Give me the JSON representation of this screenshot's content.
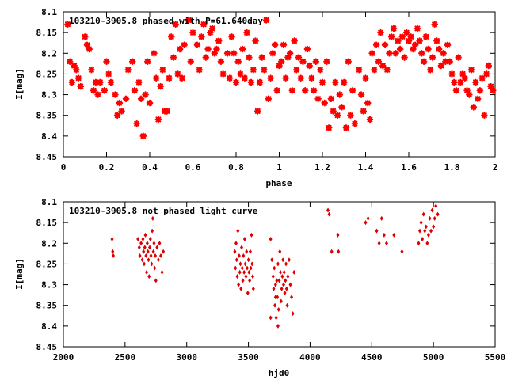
{
  "chart_data": [
    {
      "type": "scatter",
      "title": "103210-3905.8 phased with P=61.640day",
      "xlabel": "phase",
      "ylabel": "I[mag]",
      "xlim": [
        0,
        2
      ],
      "ylim": [
        8.1,
        8.45
      ],
      "y_inverted": true,
      "xticks": [
        0,
        0.2,
        0.4,
        0.6,
        0.8,
        1,
        1.2,
        1.4,
        1.6,
        1.8,
        2
      ],
      "xtick_labels": [
        "0",
        "0.2",
        "0.4",
        "0.6",
        "0.8",
        "1",
        "1.2",
        "1.4",
        "1.6",
        "1.8",
        "2"
      ],
      "yticks": [
        8.1,
        8.15,
        8.2,
        8.25,
        8.3,
        8.35,
        8.4,
        8.45
      ],
      "ytick_labels": [
        "8.1",
        "8.15",
        "8.2",
        "8.25",
        "8.3",
        "8.35",
        "8.4",
        "8.45"
      ],
      "marker_color": "#ff0000",
      "grid": false,
      "points": [
        [
          0.02,
          8.13
        ],
        [
          0.03,
          8.22
        ],
        [
          0.04,
          8.27
        ],
        [
          0.05,
          8.23
        ],
        [
          0.06,
          8.24
        ],
        [
          0.07,
          8.26
        ],
        [
          0.08,
          8.28
        ],
        [
          0.1,
          8.16
        ],
        [
          0.11,
          8.18
        ],
        [
          0.12,
          8.19
        ],
        [
          0.13,
          8.24
        ],
        [
          0.14,
          8.29
        ],
        [
          0.15,
          8.27
        ],
        [
          0.16,
          8.3
        ],
        [
          0.17,
          8.27
        ],
        [
          0.19,
          8.29
        ],
        [
          0.2,
          8.22
        ],
        [
          0.21,
          8.25
        ],
        [
          0.22,
          8.27
        ],
        [
          0.24,
          8.3
        ],
        [
          0.25,
          8.35
        ],
        [
          0.26,
          8.32
        ],
        [
          0.27,
          8.34
        ],
        [
          0.29,
          8.31
        ],
        [
          0.3,
          8.24
        ],
        [
          0.32,
          8.22
        ],
        [
          0.33,
          8.29
        ],
        [
          0.34,
          8.37
        ],
        [
          0.35,
          8.27
        ],
        [
          0.36,
          8.31
        ],
        [
          0.37,
          8.4
        ],
        [
          0.38,
          8.3
        ],
        [
          0.39,
          8.22
        ],
        [
          0.4,
          8.32
        ],
        [
          0.42,
          8.2
        ],
        [
          0.43,
          8.26
        ],
        [
          0.44,
          8.36
        ],
        [
          0.45,
          8.28
        ],
        [
          0.46,
          8.24
        ],
        [
          0.47,
          8.34
        ],
        [
          0.48,
          8.34
        ],
        [
          0.49,
          8.26
        ],
        [
          0.5,
          8.16
        ],
        [
          0.51,
          8.21
        ],
        [
          0.52,
          8.13
        ],
        [
          0.53,
          8.25
        ],
        [
          0.54,
          8.19
        ],
        [
          0.55,
          8.26
        ],
        [
          0.56,
          8.18
        ],
        [
          0.58,
          8.12
        ],
        [
          0.59,
          8.22
        ],
        [
          0.6,
          8.15
        ],
        [
          0.62,
          8.18
        ],
        [
          0.63,
          8.24
        ],
        [
          0.64,
          8.16
        ],
        [
          0.65,
          8.13
        ],
        [
          0.66,
          8.21
        ],
        [
          0.67,
          8.19
        ],
        [
          0.68,
          8.15
        ],
        [
          0.69,
          8.14
        ],
        [
          0.7,
          8.2
        ],
        [
          0.71,
          8.19
        ],
        [
          0.72,
          8.17
        ],
        [
          0.73,
          8.22
        ],
        [
          0.74,
          8.25
        ],
        [
          0.76,
          8.2
        ],
        [
          0.77,
          8.26
        ],
        [
          0.78,
          8.16
        ],
        [
          0.79,
          8.2
        ],
        [
          0.8,
          8.27
        ],
        [
          0.81,
          8.22
        ],
        [
          0.82,
          8.25
        ],
        [
          0.83,
          8.19
        ],
        [
          0.84,
          8.26
        ],
        [
          0.85,
          8.15
        ],
        [
          0.86,
          8.21
        ],
        [
          0.87,
          8.27
        ],
        [
          0.88,
          8.24
        ],
        [
          0.89,
          8.17
        ],
        [
          0.9,
          8.34
        ],
        [
          0.91,
          8.27
        ],
        [
          0.92,
          8.21
        ],
        [
          0.93,
          8.24
        ],
        [
          0.94,
          8.12
        ],
        [
          0.95,
          8.31
        ],
        [
          0.96,
          8.26
        ],
        [
          0.97,
          8.2
        ],
        [
          0.98,
          8.18
        ],
        [
          0.99,
          8.29
        ],
        [
          1.0,
          8.23
        ],
        [
          1.01,
          8.22
        ],
        [
          1.02,
          8.18
        ],
        [
          1.03,
          8.26
        ],
        [
          1.04,
          8.21
        ],
        [
          1.05,
          8.2
        ],
        [
          1.06,
          8.29
        ],
        [
          1.07,
          8.17
        ],
        [
          1.08,
          8.24
        ],
        [
          1.09,
          8.21
        ],
        [
          1.1,
          8.26
        ],
        [
          1.11,
          8.22
        ],
        [
          1.12,
          8.29
        ],
        [
          1.13,
          8.19
        ],
        [
          1.14,
          8.23
        ],
        [
          1.15,
          8.26
        ],
        [
          1.16,
          8.29
        ],
        [
          1.17,
          8.22
        ],
        [
          1.18,
          8.31
        ],
        [
          1.19,
          8.24
        ],
        [
          1.2,
          8.27
        ],
        [
          1.21,
          8.32
        ],
        [
          1.22,
          8.22
        ],
        [
          1.23,
          8.38
        ],
        [
          1.24,
          8.31
        ],
        [
          1.25,
          8.34
        ],
        [
          1.26,
          8.27
        ],
        [
          1.27,
          8.35
        ],
        [
          1.28,
          8.3
        ],
        [
          1.29,
          8.33
        ],
        [
          1.3,
          8.27
        ],
        [
          1.31,
          8.38
        ],
        [
          1.32,
          8.22
        ],
        [
          1.33,
          8.35
        ],
        [
          1.34,
          8.29
        ],
        [
          1.35,
          8.37
        ],
        [
          1.37,
          8.24
        ],
        [
          1.38,
          8.3
        ],
        [
          1.39,
          8.34
        ],
        [
          1.4,
          8.26
        ],
        [
          1.41,
          8.32
        ],
        [
          1.42,
          8.36
        ],
        [
          1.43,
          8.2
        ],
        [
          1.44,
          8.24
        ],
        [
          1.45,
          8.18
        ],
        [
          1.46,
          8.22
        ],
        [
          1.47,
          8.15
        ],
        [
          1.48,
          8.23
        ],
        [
          1.49,
          8.18
        ],
        [
          1.5,
          8.24
        ],
        [
          1.51,
          8.2
        ],
        [
          1.52,
          8.16
        ],
        [
          1.53,
          8.14
        ],
        [
          1.54,
          8.2
        ],
        [
          1.55,
          8.17
        ],
        [
          1.56,
          8.19
        ],
        [
          1.57,
          8.16
        ],
        [
          1.58,
          8.21
        ],
        [
          1.59,
          8.15
        ],
        [
          1.6,
          8.17
        ],
        [
          1.61,
          8.16
        ],
        [
          1.62,
          8.19
        ],
        [
          1.63,
          8.18
        ],
        [
          1.64,
          8.14
        ],
        [
          1.65,
          8.17
        ],
        [
          1.66,
          8.2
        ],
        [
          1.67,
          8.22
        ],
        [
          1.68,
          8.16
        ],
        [
          1.69,
          8.19
        ],
        [
          1.7,
          8.24
        ],
        [
          1.71,
          8.21
        ],
        [
          1.72,
          8.13
        ],
        [
          1.73,
          8.17
        ],
        [
          1.74,
          8.19
        ],
        [
          1.75,
          8.23
        ],
        [
          1.76,
          8.2
        ],
        [
          1.77,
          8.22
        ],
        [
          1.78,
          8.18
        ],
        [
          1.79,
          8.22
        ],
        [
          1.8,
          8.25
        ],
        [
          1.81,
          8.27
        ],
        [
          1.82,
          8.29
        ],
        [
          1.83,
          8.21
        ],
        [
          1.84,
          8.27
        ],
        [
          1.85,
          8.25
        ],
        [
          1.86,
          8.26
        ],
        [
          1.87,
          8.29
        ],
        [
          1.88,
          8.3
        ],
        [
          1.89,
          8.24
        ],
        [
          1.9,
          8.33
        ],
        [
          1.91,
          8.27
        ],
        [
          1.92,
          8.31
        ],
        [
          1.93,
          8.29
        ],
        [
          1.94,
          8.26
        ],
        [
          1.95,
          8.35
        ],
        [
          1.96,
          8.25
        ],
        [
          1.97,
          8.23
        ],
        [
          1.98,
          8.28
        ],
        [
          1.99,
          8.29
        ]
      ]
    },
    {
      "type": "scatter",
      "title": "103210-3905.8 not phased light curve",
      "xlabel": "hjd0",
      "ylabel": "I[mag]",
      "xlim": [
        2000,
        5500
      ],
      "ylim": [
        8.1,
        8.45
      ],
      "y_inverted": true,
      "xticks": [
        2000,
        2500,
        3000,
        3500,
        4000,
        4500,
        5000,
        5500
      ],
      "xtick_labels": [
        "2000",
        "2500",
        "3000",
        "3500",
        "4000",
        "4500",
        "5000",
        "5500"
      ],
      "yticks": [
        8.1,
        8.15,
        8.2,
        8.25,
        8.3,
        8.35,
        8.4,
        8.45
      ],
      "ytick_labels": [
        "8.1",
        "8.15",
        "8.2",
        "8.25",
        "8.3",
        "8.35",
        "8.4",
        "8.45"
      ],
      "marker_color": "#dd0000",
      "grid": false,
      "points": [
        [
          2395,
          8.19
        ],
        [
          2400,
          8.22
        ],
        [
          2405,
          8.23
        ],
        [
          2605,
          8.19
        ],
        [
          2615,
          8.21
        ],
        [
          2620,
          8.23
        ],
        [
          2630,
          8.2
        ],
        [
          2640,
          8.24
        ],
        [
          2645,
          8.19
        ],
        [
          2650,
          8.22
        ],
        [
          2655,
          8.25
        ],
        [
          2660,
          8.21
        ],
        [
          2665,
          8.18
        ],
        [
          2670,
          8.23
        ],
        [
          2675,
          8.27
        ],
        [
          2680,
          8.2
        ],
        [
          2685,
          8.22
        ],
        [
          2690,
          8.24
        ],
        [
          2695,
          8.28
        ],
        [
          2700,
          8.21
        ],
        [
          2705,
          8.19
        ],
        [
          2710,
          8.23
        ],
        [
          2715,
          8.25
        ],
        [
          2720,
          8.17
        ],
        [
          2725,
          8.14
        ],
        [
          2730,
          8.22
        ],
        [
          2735,
          8.2
        ],
        [
          2740,
          8.26
        ],
        [
          2745,
          8.23
        ],
        [
          2750,
          8.29
        ],
        [
          2760,
          8.21
        ],
        [
          2770,
          8.24
        ],
        [
          2780,
          8.2
        ],
        [
          2790,
          8.23
        ],
        [
          2800,
          8.27
        ],
        [
          2810,
          8.22
        ],
        [
          3390,
          8.22
        ],
        [
          3395,
          8.26
        ],
        [
          3400,
          8.2
        ],
        [
          3405,
          8.24
        ],
        [
          3410,
          8.28
        ],
        [
          3415,
          8.17
        ],
        [
          3420,
          8.3
        ],
        [
          3425,
          8.23
        ],
        [
          3430,
          8.27
        ],
        [
          3435,
          8.25
        ],
        [
          3440,
          8.31
        ],
        [
          3445,
          8.21
        ],
        [
          3450,
          8.26
        ],
        [
          3455,
          8.29
        ],
        [
          3460,
          8.23
        ],
        [
          3465,
          8.27
        ],
        [
          3470,
          8.19
        ],
        [
          3475,
          8.25
        ],
        [
          3480,
          8.28
        ],
        [
          3485,
          8.22
        ],
        [
          3490,
          8.26
        ],
        [
          3495,
          8.32
        ],
        [
          3500,
          8.24
        ],
        [
          3505,
          8.27
        ],
        [
          3510,
          8.29
        ],
        [
          3515,
          8.22
        ],
        [
          3520,
          8.26
        ],
        [
          3525,
          8.18
        ],
        [
          3530,
          8.25
        ],
        [
          3535,
          8.28
        ],
        [
          3540,
          8.31
        ],
        [
          3680,
          8.19
        ],
        [
          3690,
          8.24
        ],
        [
          3700,
          8.28
        ],
        [
          3705,
          8.31
        ],
        [
          3710,
          8.26
        ],
        [
          3715,
          8.35
        ],
        [
          3720,
          8.3
        ],
        [
          3725,
          8.38
        ],
        [
          3730,
          8.29
        ],
        [
          3735,
          8.33
        ],
        [
          3740,
          8.25
        ],
        [
          3745,
          8.36
        ],
        [
          3750,
          8.29
        ],
        [
          3755,
          8.22
        ],
        [
          3760,
          8.27
        ],
        [
          3765,
          8.34
        ],
        [
          3770,
          8.31
        ],
        [
          3775,
          8.28
        ],
        [
          3780,
          8.24
        ],
        [
          3785,
          8.3
        ],
        [
          3790,
          8.27
        ],
        [
          3795,
          8.32
        ],
        [
          3800,
          8.29
        ],
        [
          3805,
          8.25
        ],
        [
          3810,
          8.31
        ],
        [
          3815,
          8.35
        ],
        [
          3820,
          8.28
        ],
        [
          3830,
          8.24
        ],
        [
          3840,
          8.3
        ],
        [
          3850,
          8.33
        ],
        [
          3860,
          8.37
        ],
        [
          3870,
          8.27
        ],
        [
          3680,
          8.38
        ],
        [
          3740,
          8.4
        ],
        [
          3720,
          8.33
        ],
        [
          4145,
          8.12
        ],
        [
          4155,
          8.13
        ],
        [
          4175,
          8.22
        ],
        [
          4225,
          8.18
        ],
        [
          4230,
          8.22
        ],
        [
          4450,
          8.15
        ],
        [
          4470,
          8.14
        ],
        [
          4540,
          8.17
        ],
        [
          4560,
          8.2
        ],
        [
          4580,
          8.14
        ],
        [
          4600,
          8.18
        ],
        [
          4620,
          8.2
        ],
        [
          4680,
          8.18
        ],
        [
          4745,
          8.22
        ],
        [
          4880,
          8.2
        ],
        [
          4890,
          8.17
        ],
        [
          4900,
          8.15
        ],
        [
          4910,
          8.19
        ],
        [
          4920,
          8.13
        ],
        [
          4930,
          8.17
        ],
        [
          4940,
          8.16
        ],
        [
          4950,
          8.2
        ],
        [
          4960,
          8.18
        ],
        [
          4970,
          8.14
        ],
        [
          4980,
          8.17
        ],
        [
          4990,
          8.12
        ],
        [
          5000,
          8.16
        ],
        [
          5010,
          8.14
        ],
        [
          5020,
          8.11
        ],
        [
          5035,
          8.13
        ]
      ]
    }
  ]
}
